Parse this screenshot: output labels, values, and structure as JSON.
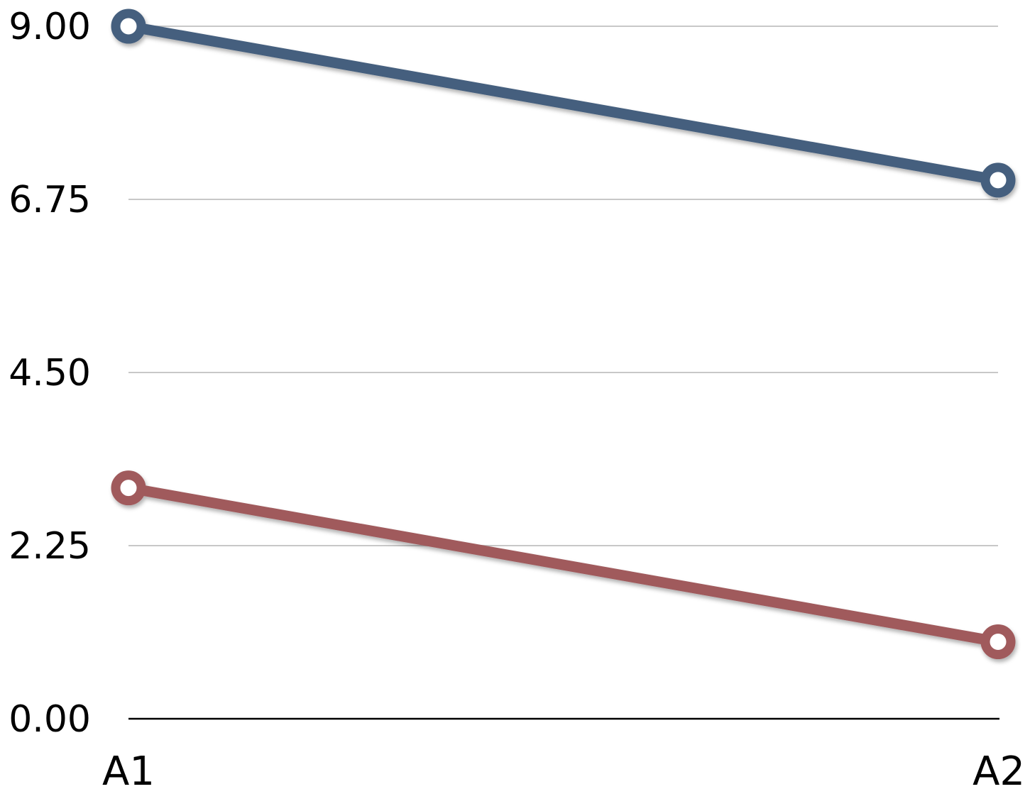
{
  "chart_data": {
    "type": "line",
    "categories": [
      "A1",
      "A2"
    ],
    "y_ticks": [
      "0.00",
      "2.25",
      "4.50",
      "6.75",
      "9.00"
    ],
    "ylim": [
      0,
      9
    ],
    "grid": true,
    "series": [
      {
        "values": [
          9.0,
          7.0
        ],
        "color": "#445f7e"
      },
      {
        "values": [
          3.0,
          1.0
        ],
        "color": "#a05a5c"
      }
    ]
  }
}
